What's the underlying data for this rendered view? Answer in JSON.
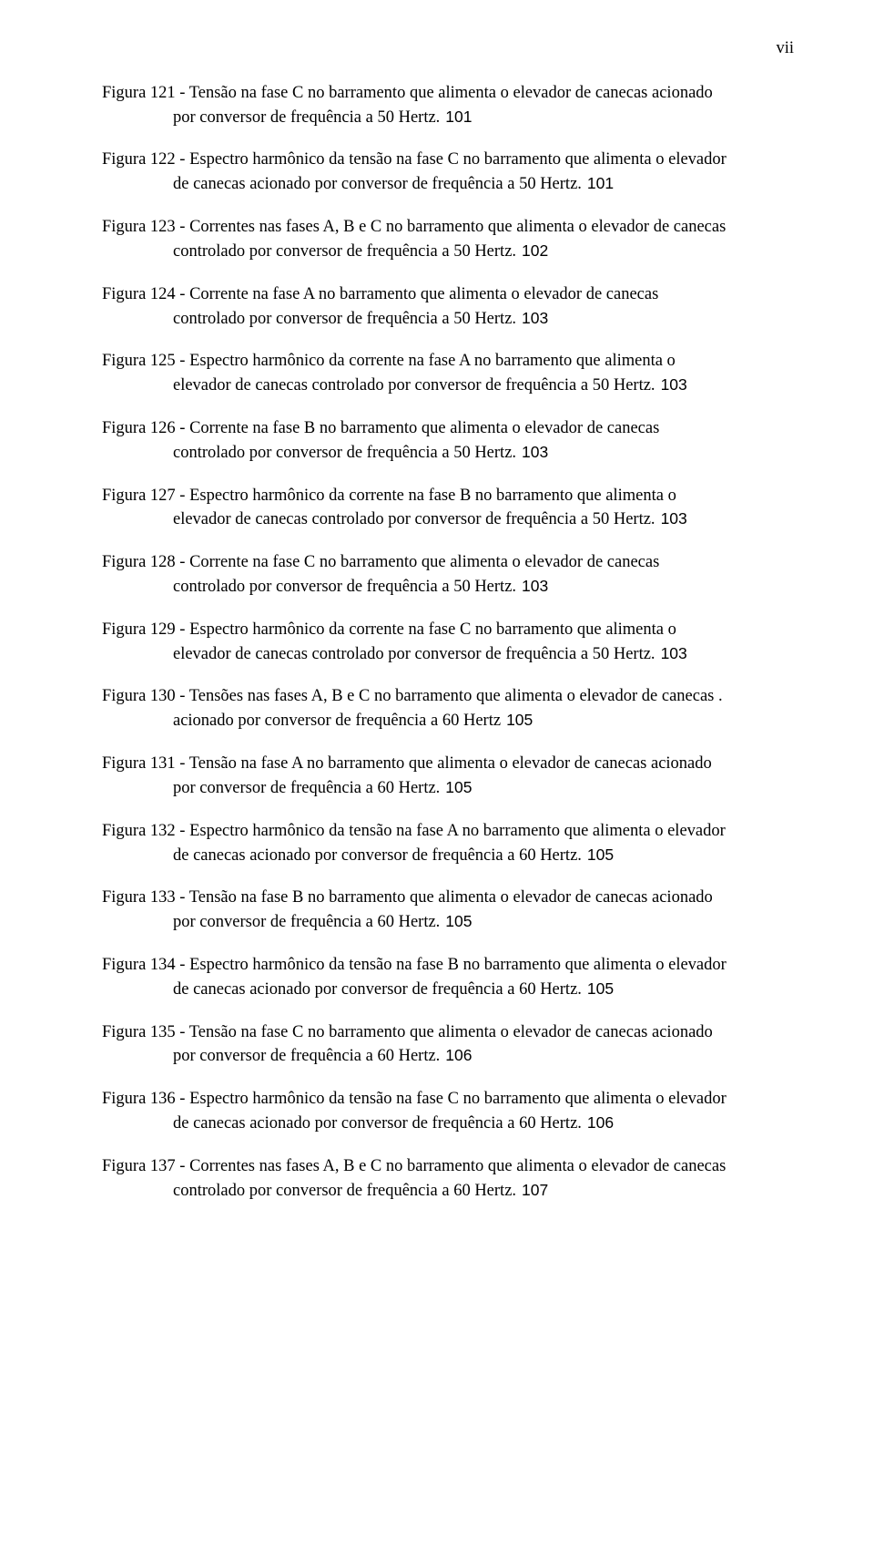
{
  "page_number_label": "vii",
  "font": {
    "body_family": "Times New Roman",
    "body_size_pt": 12,
    "page_num_family": "Arial",
    "page_num_size_pt": 11,
    "color": "#000000",
    "background": "#ffffff"
  },
  "entries": [
    {
      "line1": "Figura 121 - Tensão na fase C no barramento que alimenta o elevador de canecas acionado",
      "line2": "por conversor de frequência a 50 Hertz.",
      "page": "101"
    },
    {
      "line1": "Figura 122 - Espectro harmônico da tensão na fase C no barramento que alimenta o elevador",
      "line2": "de canecas acionado por conversor de frequência a 50 Hertz.",
      "page": "101"
    },
    {
      "line1": "Figura 123 - Correntes nas fases A, B e C no barramento que alimenta o elevador de canecas",
      "line2": "controlado por conversor de frequência a 50 Hertz.",
      "page": "102"
    },
    {
      "line1": "Figura 124 - Corrente na fase A no barramento que alimenta o elevador de canecas",
      "line2": "controlado por conversor de frequência a 50 Hertz.",
      "page": "103"
    },
    {
      "line1": "Figura 125 - Espectro harmônico da corrente na fase A no barramento que alimenta o",
      "line2": "elevador de canecas controlado por conversor de frequência a 50 Hertz.",
      "page": "103"
    },
    {
      "line1": "Figura 126 - Corrente na fase B no barramento que alimenta o elevador de canecas",
      "line2": "controlado por conversor de frequência a 50 Hertz.",
      "page": "103"
    },
    {
      "line1": "Figura 127 - Espectro harmônico da corrente na fase B no barramento que alimenta o",
      "line2": "elevador de canecas controlado por conversor de frequência a 50 Hertz.",
      "page": "103"
    },
    {
      "line1": "Figura 128 - Corrente na fase C no barramento que alimenta o elevador de canecas",
      "line2": "controlado por conversor de frequência a 50 Hertz.",
      "page": "103"
    },
    {
      "line1": "Figura 129 - Espectro harmônico da corrente na fase C no barramento que alimenta o",
      "line2": "elevador de canecas controlado por conversor de frequência a 50 Hertz.",
      "page": "103"
    },
    {
      "line1": "Figura 130 - Tensões nas fases A, B e C no barramento que alimenta o elevador de canecas .",
      "line2": "acionado por conversor de frequência a 60 Hertz",
      "page": "105"
    },
    {
      "line1": "Figura 131 - Tensão na fase A no barramento que alimenta o elevador de canecas acionado",
      "line2": "por conversor de frequência a 60 Hertz.",
      "page": "105"
    },
    {
      "line1": "Figura 132 - Espectro harmônico da tensão na fase A no barramento que alimenta o elevador",
      "line2": "de canecas acionado por conversor de frequência a 60 Hertz.",
      "page": "105"
    },
    {
      "line1": "Figura 133 - Tensão na fase B no barramento que alimenta o elevador de canecas acionado",
      "line2": "por conversor de frequência a 60 Hertz.",
      "page": "105"
    },
    {
      "line1": "Figura 134 - Espectro harmônico da tensão na fase B no barramento que alimenta o elevador",
      "line2": "de canecas acionado por conversor de frequência a 60 Hertz.",
      "page": "105"
    },
    {
      "line1": "Figura 135 - Tensão na fase C no barramento que alimenta o elevador de canecas acionado",
      "line2": "por conversor de frequência a 60 Hertz.",
      "page": "106"
    },
    {
      "line1": "Figura 136 - Espectro harmônico da tensão na fase C no barramento que alimenta o elevador",
      "line2": "de canecas acionado por conversor de frequência a 60 Hertz.",
      "page": "106"
    },
    {
      "line1": "Figura 137 - Correntes nas fases A, B e C no barramento que alimenta o elevador de canecas",
      "line2": "controlado por conversor de frequência a 60 Hertz.",
      "page": "107"
    }
  ]
}
